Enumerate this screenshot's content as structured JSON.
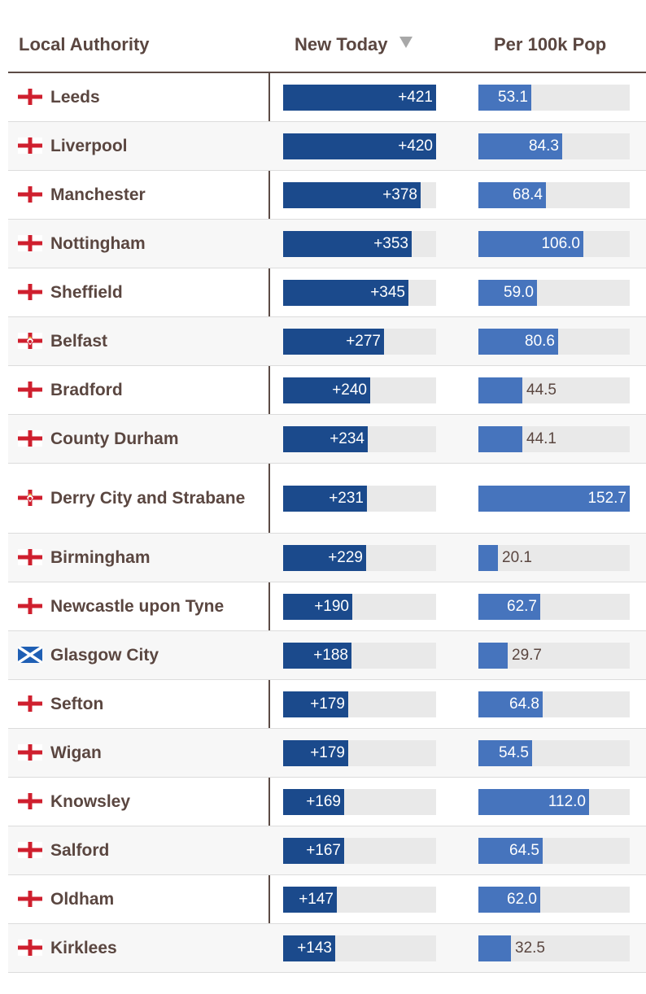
{
  "chart_data": {
    "type": "table",
    "columns": [
      "Local Authority",
      "New Today",
      "Per 100k Pop"
    ],
    "sort": {
      "column": "New Today",
      "direction": "descending"
    },
    "colors": {
      "new_today_bar": "#1b4a8c",
      "per100k_bar": "#4674bd",
      "track": "#e9e9e9",
      "text": "#5a4640"
    },
    "new_today_max": 421,
    "per100k_max": 152.7,
    "rows": [
      {
        "flag": "england-flag-icon",
        "name": "Leeds",
        "new_today": 421,
        "new_today_label": "+421",
        "per100k": 53.1,
        "per100k_label": "53.1"
      },
      {
        "flag": "england-flag-icon",
        "name": "Liverpool",
        "new_today": 420,
        "new_today_label": "+420",
        "per100k": 84.3,
        "per100k_label": "84.3"
      },
      {
        "flag": "england-flag-icon",
        "name": "Manchester",
        "new_today": 378,
        "new_today_label": "+378",
        "per100k": 68.4,
        "per100k_label": "68.4"
      },
      {
        "flag": "england-flag-icon",
        "name": "Nottingham",
        "new_today": 353,
        "new_today_label": "+353",
        "per100k": 106.0,
        "per100k_label": "106.0"
      },
      {
        "flag": "england-flag-icon",
        "name": "Sheffield",
        "new_today": 345,
        "new_today_label": "+345",
        "per100k": 59.0,
        "per100k_label": "59.0"
      },
      {
        "flag": "northern-ireland-flag-icon",
        "name": "Belfast",
        "new_today": 277,
        "new_today_label": "+277",
        "per100k": 80.6,
        "per100k_label": "80.6"
      },
      {
        "flag": "england-flag-icon",
        "name": "Bradford",
        "new_today": 240,
        "new_today_label": "+240",
        "per100k": 44.5,
        "per100k_label": "44.5"
      },
      {
        "flag": "england-flag-icon",
        "name": "County Durham",
        "new_today": 234,
        "new_today_label": "+234",
        "per100k": 44.1,
        "per100k_label": "44.1"
      },
      {
        "flag": "northern-ireland-flag-icon",
        "name": "Derry City and Strabane",
        "new_today": 231,
        "new_today_label": "+231",
        "per100k": 152.7,
        "per100k_label": "152.7"
      },
      {
        "flag": "england-flag-icon",
        "name": "Birmingham",
        "new_today": 229,
        "new_today_label": "+229",
        "per100k": 20.1,
        "per100k_label": "20.1"
      },
      {
        "flag": "england-flag-icon",
        "name": "Newcastle upon Tyne",
        "new_today": 190,
        "new_today_label": "+190",
        "per100k": 62.7,
        "per100k_label": "62.7"
      },
      {
        "flag": "scotland-flag-icon",
        "name": "Glasgow City",
        "new_today": 188,
        "new_today_label": "+188",
        "per100k": 29.7,
        "per100k_label": "29.7"
      },
      {
        "flag": "england-flag-icon",
        "name": "Sefton",
        "new_today": 179,
        "new_today_label": "+179",
        "per100k": 64.8,
        "per100k_label": "64.8"
      },
      {
        "flag": "england-flag-icon",
        "name": "Wigan",
        "new_today": 179,
        "new_today_label": "+179",
        "per100k": 54.5,
        "per100k_label": "54.5"
      },
      {
        "flag": "england-flag-icon",
        "name": "Knowsley",
        "new_today": 169,
        "new_today_label": "+169",
        "per100k": 112.0,
        "per100k_label": "112.0"
      },
      {
        "flag": "england-flag-icon",
        "name": "Salford",
        "new_today": 167,
        "new_today_label": "+167",
        "per100k": 64.5,
        "per100k_label": "64.5"
      },
      {
        "flag": "england-flag-icon",
        "name": "Oldham",
        "new_today": 147,
        "new_today_label": "+147",
        "per100k": 62.0,
        "per100k_label": "62.0"
      },
      {
        "flag": "england-flag-icon",
        "name": "Kirklees",
        "new_today": 143,
        "new_today_label": "+143",
        "per100k": 32.5,
        "per100k_label": "32.5"
      }
    ]
  }
}
